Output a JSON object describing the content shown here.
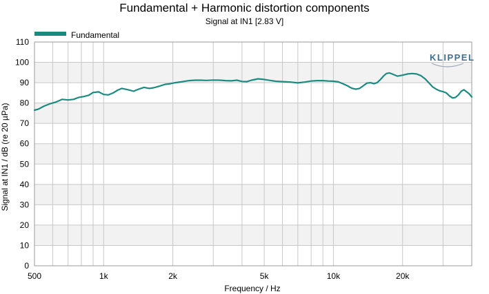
{
  "chart_data": {
    "type": "line",
    "title": "Fundamental + Harmonic distortion components",
    "subtitle": "Signal at IN1 [2.83 V]",
    "xlabel": "Frequency / Hz",
    "ylabel": "Signal at IN1 / dB (re 20 µPa)",
    "x_scale": "log",
    "xlim": [
      500,
      40000
    ],
    "ylim": [
      0,
      110
    ],
    "x_ticks": [
      {
        "value": 500,
        "label": "500"
      },
      {
        "value": 1000,
        "label": "1k"
      },
      {
        "value": 2000,
        "label": "2k"
      },
      {
        "value": 5000,
        "label": "5k"
      },
      {
        "value": 10000,
        "label": "10k"
      },
      {
        "value": 20000,
        "label": "20k"
      }
    ],
    "y_ticks": [
      0,
      10,
      20,
      30,
      40,
      50,
      60,
      70,
      80,
      90,
      100,
      110
    ],
    "grid": true,
    "legend_position": "top-left",
    "logo": "KLIPPEL",
    "colors": {
      "fundamental": "#1b8a80",
      "band_light": "#f2f2f2",
      "band_white": "#ffffff",
      "grid": "#c8c8c8",
      "logo": "#3d6e8f"
    },
    "series": [
      {
        "name": "Fundamental",
        "x": [
          500,
          520,
          550,
          580,
          620,
          660,
          700,
          740,
          780,
          820,
          860,
          900,
          950,
          1000,
          1050,
          1100,
          1150,
          1200,
          1280,
          1350,
          1420,
          1500,
          1580,
          1650,
          1750,
          1850,
          1950,
          2050,
          2200,
          2350,
          2500,
          2650,
          2800,
          3000,
          3200,
          3400,
          3600,
          3800,
          4000,
          4200,
          4400,
          4700,
          5000,
          5300,
          5600,
          6000,
          6500,
          7000,
          7500,
          8000,
          8500,
          9000,
          9500,
          10000,
          10500,
          11000,
          11500,
          12000,
          12500,
          13000,
          13500,
          14000,
          14500,
          15000,
          15500,
          16000,
          16500,
          17000,
          17500,
          18000,
          19000,
          20000,
          21000,
          22000,
          23000,
          24000,
          25000,
          26000,
          27000,
          28000,
          29000,
          30000,
          31000,
          32000,
          33000,
          34000,
          35000,
          36000,
          37000,
          38000,
          39000,
          40000
        ],
        "y": [
          76.5,
          77,
          78.5,
          79.5,
          80.5,
          81.8,
          81.5,
          81.8,
          82.8,
          83.2,
          83.8,
          85.2,
          85.5,
          84.2,
          84,
          85,
          86.3,
          87.2,
          86.5,
          85.8,
          86.8,
          87.7,
          87.2,
          87.5,
          88.3,
          89.2,
          89.5,
          90,
          90.5,
          91,
          91.2,
          91.2,
          91.1,
          91.3,
          91.2,
          91,
          90.9,
          91.2,
          90.6,
          90.5,
          91.2,
          91.9,
          91.6,
          91.1,
          90.7,
          90.5,
          90.3,
          89.9,
          90.3,
          90.8,
          91,
          91,
          90.8,
          90.7,
          90.4,
          89.5,
          88.5,
          87.3,
          86.8,
          87.2,
          88.5,
          89.8,
          90,
          89.5,
          90,
          91.5,
          93.2,
          94.5,
          94.8,
          94.3,
          93.2,
          93.7,
          94.3,
          94.5,
          94.3,
          93.5,
          92,
          90,
          88,
          86.8,
          86,
          85.6,
          85,
          83.5,
          82.5,
          82.8,
          84,
          85.8,
          86.5,
          85.5,
          84.5,
          83
        ]
      }
    ]
  }
}
